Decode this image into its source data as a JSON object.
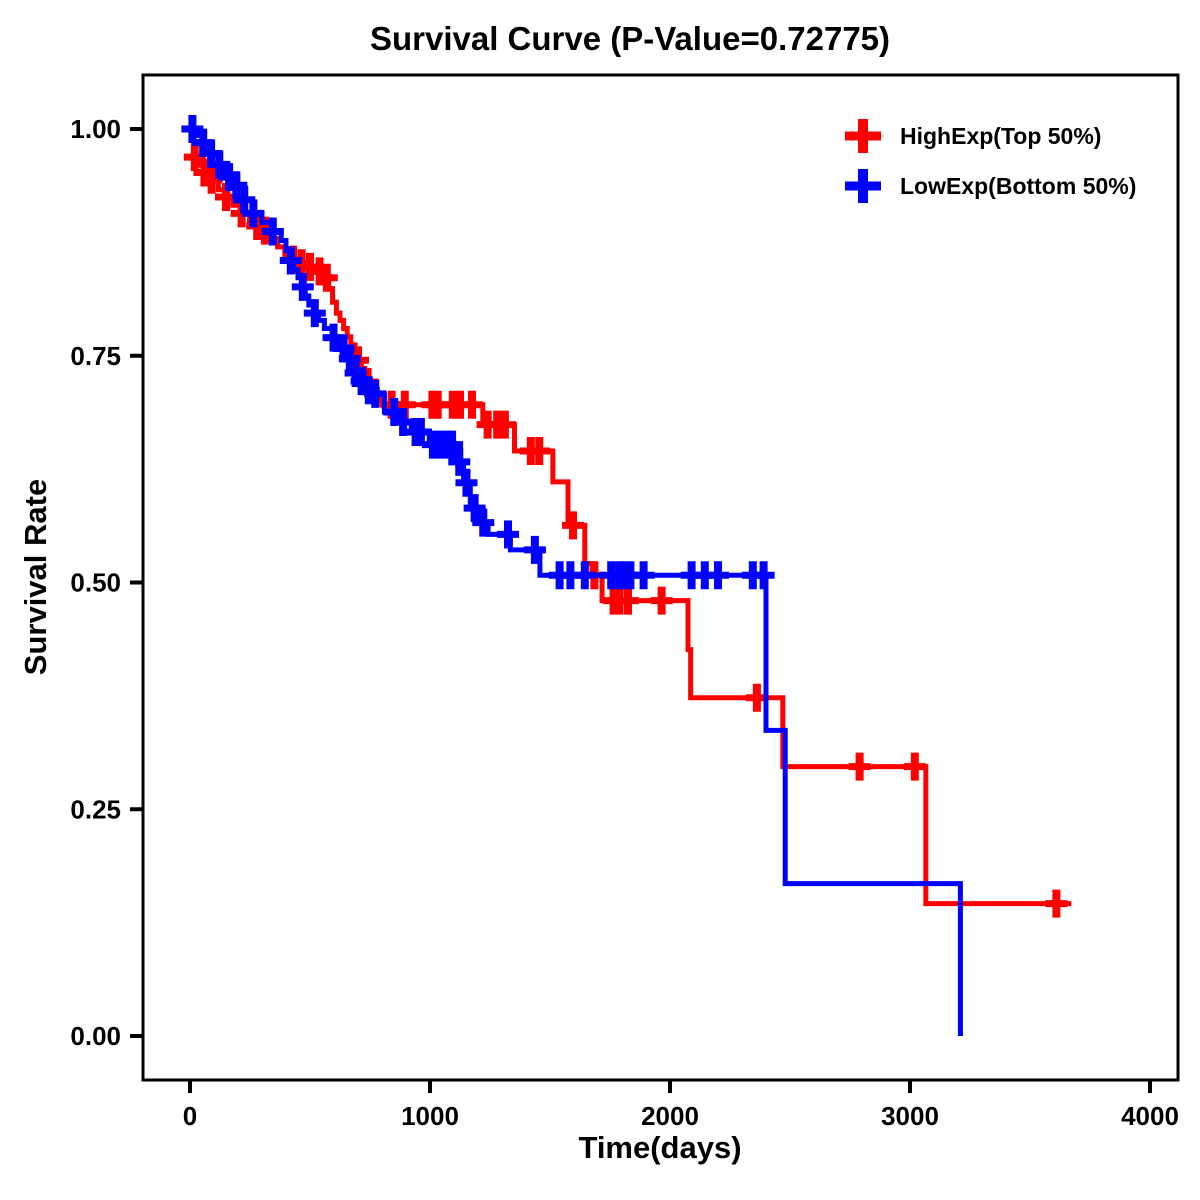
{
  "chart_data": {
    "type": "line",
    "subtype": "kaplan-meier-step-curve",
    "title": "Survival Curve (P-Value=0.72775)",
    "p_value": "0.72775",
    "xlabel": "Time(days)",
    "ylabel": "Survival Rate",
    "x_ticks": [
      0,
      1000,
      2000,
      3000,
      4000
    ],
    "y_ticks": [
      0.0,
      0.25,
      0.5,
      0.75,
      1.0
    ],
    "y_tick_labels": [
      "0.00",
      "0.25",
      "0.50",
      "0.75",
      "1.00"
    ],
    "xlim": [
      -200,
      4120
    ],
    "ylim": [
      -0.05,
      1.06
    ],
    "grid": false,
    "legend_position": "top-right",
    "background": "#FFFFFF",
    "axis_color": "#000000",
    "series": [
      {
        "name": "HighExp(Top 50%)",
        "color": "#FF0000",
        "steps": [
          [
            0,
            1.0
          ],
          [
            8,
            0.99
          ],
          [
            16,
            0.98
          ],
          [
            25,
            0.969
          ],
          [
            45,
            0.96
          ],
          [
            65,
            0.952
          ],
          [
            95,
            0.944
          ],
          [
            118,
            0.933
          ],
          [
            148,
            0.925
          ],
          [
            178,
            0.916
          ],
          [
            212,
            0.907
          ],
          [
            248,
            0.898
          ],
          [
            275,
            0.893
          ],
          [
            305,
            0.888
          ],
          [
            335,
            0.879
          ],
          [
            365,
            0.87
          ],
          [
            395,
            0.862
          ],
          [
            425,
            0.856
          ],
          [
            460,
            0.852
          ],
          [
            495,
            0.848
          ],
          [
            532,
            0.843
          ],
          [
            562,
            0.836
          ],
          [
            578,
            0.824
          ],
          [
            594,
            0.809
          ],
          [
            610,
            0.797
          ],
          [
            625,
            0.789
          ],
          [
            640,
            0.78
          ],
          [
            655,
            0.771
          ],
          [
            670,
            0.762
          ],
          [
            688,
            0.752
          ],
          [
            700,
            0.745
          ],
          [
            714,
            0.736
          ],
          [
            728,
            0.728
          ],
          [
            742,
            0.721
          ],
          [
            756,
            0.714
          ],
          [
            770,
            0.707
          ],
          [
            785,
            0.701
          ],
          [
            800,
            0.696
          ],
          [
            1220,
            0.674
          ],
          [
            1352,
            0.645
          ],
          [
            1512,
            0.611
          ],
          [
            1575,
            0.563
          ],
          [
            1645,
            0.521
          ],
          [
            1675,
            0.508
          ],
          [
            1717,
            0.48
          ],
          [
            2075,
            0.426
          ],
          [
            2086,
            0.373
          ],
          [
            2470,
            0.297
          ],
          [
            3066,
            0.146
          ],
          [
            3672,
            0.146
          ]
        ],
        "censors": [
          [
            20,
            0.969
          ],
          [
            60,
            0.952
          ],
          [
            90,
            0.944
          ],
          [
            150,
            0.925
          ],
          [
            215,
            0.907
          ],
          [
            280,
            0.893
          ],
          [
            312,
            0.888
          ],
          [
            430,
            0.856
          ],
          [
            465,
            0.852
          ],
          [
            500,
            0.848
          ],
          [
            540,
            0.843
          ],
          [
            570,
            0.836
          ],
          [
            700,
            0.745
          ],
          [
            740,
            0.721
          ],
          [
            840,
            0.696
          ],
          [
            895,
            0.696
          ],
          [
            1010,
            0.696
          ],
          [
            1032,
            0.696
          ],
          [
            1095,
            0.696
          ],
          [
            1125,
            0.696
          ],
          [
            1175,
            0.696
          ],
          [
            1240,
            0.674
          ],
          [
            1280,
            0.674
          ],
          [
            1312,
            0.674
          ],
          [
            1420,
            0.645
          ],
          [
            1455,
            0.645
          ],
          [
            1596,
            0.563
          ],
          [
            1685,
            0.508
          ],
          [
            1765,
            0.48
          ],
          [
            1790,
            0.48
          ],
          [
            1825,
            0.48
          ],
          [
            1965,
            0.48
          ],
          [
            2362,
            0.373
          ],
          [
            2790,
            0.297
          ],
          [
            3020,
            0.297
          ],
          [
            3610,
            0.146
          ]
        ]
      },
      {
        "name": "LowExp(Bottom 50%)",
        "color": "#0000FF",
        "steps": [
          [
            0,
            1.0
          ],
          [
            30,
            0.993
          ],
          [
            60,
            0.985
          ],
          [
            85,
            0.973
          ],
          [
            117,
            0.961
          ],
          [
            147,
            0.95
          ],
          [
            160,
            0.947
          ],
          [
            190,
            0.938
          ],
          [
            220,
            0.922
          ],
          [
            260,
            0.907
          ],
          [
            300,
            0.897
          ],
          [
            340,
            0.887
          ],
          [
            380,
            0.877
          ],
          [
            400,
            0.866
          ],
          [
            415,
            0.855
          ],
          [
            432,
            0.845
          ],
          [
            450,
            0.836
          ],
          [
            465,
            0.826
          ],
          [
            480,
            0.816
          ],
          [
            495,
            0.806
          ],
          [
            515,
            0.797
          ],
          [
            535,
            0.789
          ],
          [
            560,
            0.78
          ],
          [
            592,
            0.77
          ],
          [
            620,
            0.758
          ],
          [
            658,
            0.747
          ],
          [
            680,
            0.731
          ],
          [
            705,
            0.722
          ],
          [
            735,
            0.712
          ],
          [
            762,
            0.708
          ],
          [
            810,
            0.688
          ],
          [
            872,
            0.677
          ],
          [
            922,
            0.666
          ],
          [
            997,
            0.652
          ],
          [
            1110,
            0.633
          ],
          [
            1140,
            0.61
          ],
          [
            1168,
            0.582
          ],
          [
            1208,
            0.566
          ],
          [
            1242,
            0.553
          ],
          [
            1335,
            0.536
          ],
          [
            1458,
            0.508
          ],
          [
            2400,
            0.337
          ],
          [
            2480,
            0.168
          ],
          [
            3210,
            0.0
          ]
        ],
        "censors": [
          [
            10,
            1.0
          ],
          [
            55,
            0.985
          ],
          [
            88,
            0.973
          ],
          [
            122,
            0.961
          ],
          [
            163,
            0.947
          ],
          [
            193,
            0.938
          ],
          [
            226,
            0.922
          ],
          [
            264,
            0.907
          ],
          [
            345,
            0.887
          ],
          [
            420,
            0.855
          ],
          [
            470,
            0.826
          ],
          [
            520,
            0.797
          ],
          [
            598,
            0.77
          ],
          [
            640,
            0.758
          ],
          [
            666,
            0.747
          ],
          [
            690,
            0.731
          ],
          [
            715,
            0.722
          ],
          [
            745,
            0.712
          ],
          [
            772,
            0.708
          ],
          [
            851,
            0.688
          ],
          [
            888,
            0.677
          ],
          [
            940,
            0.666
          ],
          [
            962,
            0.666
          ],
          [
            1012,
            0.652
          ],
          [
            1040,
            0.652
          ],
          [
            1068,
            0.652
          ],
          [
            1092,
            0.652
          ],
          [
            1122,
            0.633
          ],
          [
            1152,
            0.61
          ],
          [
            1186,
            0.582
          ],
          [
            1222,
            0.566
          ],
          [
            1325,
            0.553
          ],
          [
            1437,
            0.536
          ],
          [
            1540,
            0.508
          ],
          [
            1585,
            0.508
          ],
          [
            1645,
            0.508
          ],
          [
            1755,
            0.508
          ],
          [
            1788,
            0.508
          ],
          [
            1808,
            0.508
          ],
          [
            1835,
            0.508
          ],
          [
            1890,
            0.508
          ],
          [
            2090,
            0.508
          ],
          [
            2145,
            0.508
          ],
          [
            2200,
            0.508
          ],
          [
            2345,
            0.508
          ],
          [
            2390,
            0.508
          ]
        ]
      }
    ]
  }
}
